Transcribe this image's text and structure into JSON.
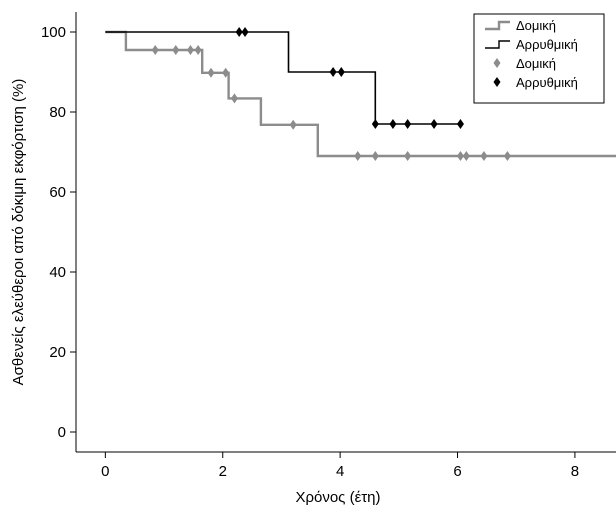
{
  "chart_data": {
    "type": "line",
    "subtype": "kaplan-meier step survival curves with censoring marks",
    "xlabel": "Χρόνος (έτη)",
    "ylabel": "Ασθενείς ελεύθεροι από δόκιμη εκφόρτιση (%)",
    "xlim": [
      -0.5,
      8.7
    ],
    "ylim": [
      -5,
      105
    ],
    "xticks": [
      0,
      2,
      4,
      6,
      8
    ],
    "yticks": [
      0,
      20,
      40,
      60,
      80,
      100
    ],
    "grid": false,
    "legend_position": "top-right",
    "series": [
      {
        "name": "Δομική",
        "color": "#8c8c8c",
        "steps": [
          [
            0,
            100
          ],
          [
            0.35,
            100
          ],
          [
            0.35,
            95.5
          ],
          [
            1.65,
            95.5
          ],
          [
            1.65,
            89.8
          ],
          [
            2.1,
            89.8
          ],
          [
            2.1,
            83.4
          ],
          [
            2.65,
            83.4
          ],
          [
            2.65,
            76.8
          ],
          [
            3.62,
            76.8
          ],
          [
            3.62,
            69
          ],
          [
            8.7,
            69
          ]
        ],
        "censored": [
          [
            0.85,
            95.5
          ],
          [
            1.2,
            95.5
          ],
          [
            1.45,
            95.5
          ],
          [
            1.58,
            95.5
          ],
          [
            1.8,
            89.8
          ],
          [
            2.05,
            89.8
          ],
          [
            2.2,
            83.4
          ],
          [
            3.2,
            76.8
          ],
          [
            4.3,
            69
          ],
          [
            4.6,
            69
          ],
          [
            5.15,
            69
          ],
          [
            6.05,
            69
          ],
          [
            6.15,
            69
          ],
          [
            6.45,
            69
          ],
          [
            6.85,
            69
          ]
        ]
      },
      {
        "name": "Αρρυθμική",
        "color": "#000000",
        "steps": [
          [
            0,
            100
          ],
          [
            3.12,
            100
          ],
          [
            3.12,
            90
          ],
          [
            4.6,
            90
          ],
          [
            4.6,
            77
          ],
          [
            6.1,
            77
          ]
        ],
        "censored": [
          [
            2.28,
            100
          ],
          [
            2.38,
            100
          ],
          [
            3.88,
            90
          ],
          [
            4.02,
            90
          ],
          [
            4.6,
            77
          ],
          [
            4.9,
            77
          ],
          [
            5.15,
            77
          ],
          [
            5.6,
            77
          ],
          [
            6.05,
            77
          ]
        ]
      }
    ],
    "legend": [
      {
        "label": "Δομική",
        "style": "line",
        "color": "#8c8c8c"
      },
      {
        "label": "Αρρυθμική",
        "style": "line",
        "color": "#000000"
      },
      {
        "label": "Δομική",
        "style": "marker",
        "color": "#8c8c8c"
      },
      {
        "label": "Αρρυθμική",
        "style": "marker",
        "color": "#000000"
      }
    ]
  }
}
